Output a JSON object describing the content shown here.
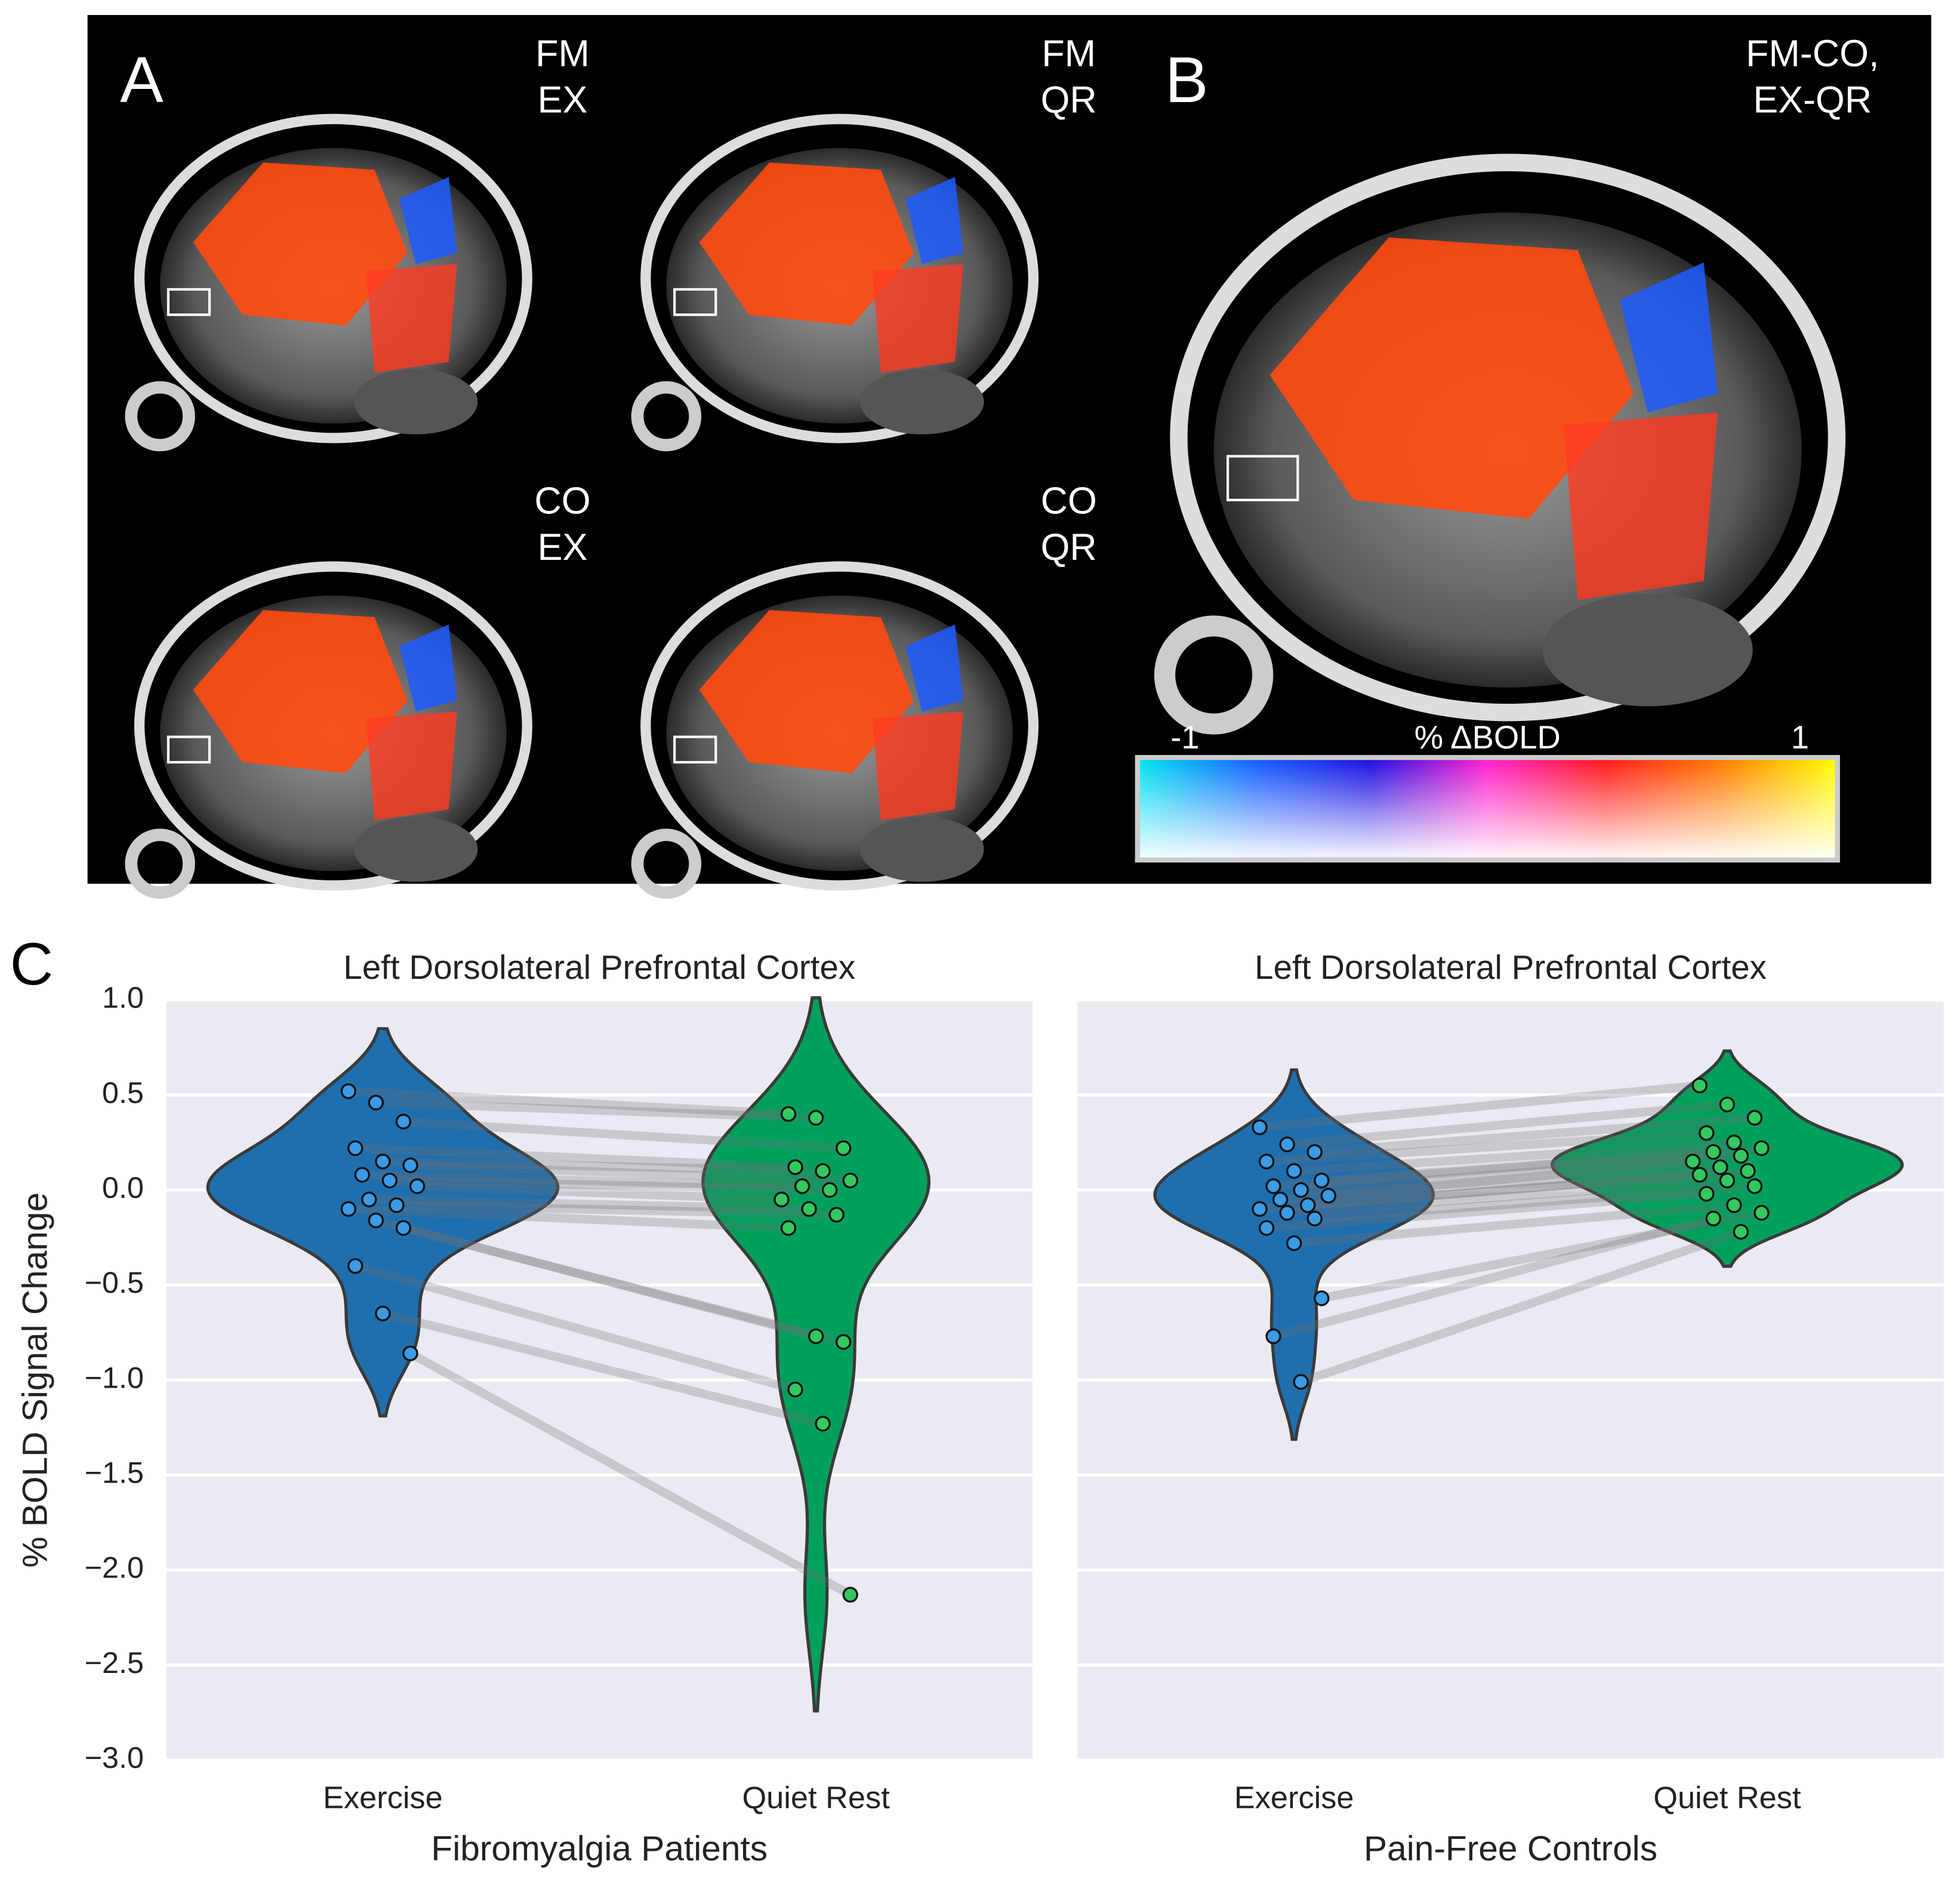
{
  "figure": {
    "panel_a": {
      "label": "A",
      "images": [
        [
          "FM",
          "EX"
        ],
        [
          "FM",
          "QR"
        ],
        [
          "CO",
          "EX"
        ],
        [
          "CO",
          "QR"
        ]
      ]
    },
    "panel_b": {
      "label": "B",
      "title": [
        "FM-CO,",
        "EX-QR"
      ],
      "colorbar": {
        "label": "% ΔBOLD",
        "min": -1,
        "max": 1,
        "colors": [
          "#00e5f0",
          "#1560ff",
          "#2010e0",
          "#ff20d0",
          "#ff1a1a",
          "#ff7a00",
          "#ffff00"
        ]
      }
    },
    "panel_c": {
      "label": "C"
    }
  },
  "chart_data": [
    {
      "type": "violin",
      "title": "Left Dorsolateral Prefrontal Cortex",
      "ylabel": "% BOLD Signal Change",
      "xlabel": "Fibromyalgia Patients",
      "categories": [
        "Exercise",
        "Quiet Rest"
      ],
      "colors": [
        "#1f6fae",
        "#00a05c"
      ],
      "point_colors": [
        "#3b9be6",
        "#33c95f"
      ],
      "values": [
        [
          0.52,
          0.46,
          0.36,
          0.22,
          0.15,
          0.13,
          0.08,
          0.05,
          0.02,
          -0.05,
          -0.08,
          -0.1,
          -0.16,
          -0.2,
          -0.4,
          -0.65,
          -0.86
        ],
        [
          0.4,
          0.38,
          0.22,
          0.12,
          0.1,
          0.05,
          0.02,
          0,
          -0.05,
          -0.1,
          -0.13,
          -0.2,
          -0.77,
          -0.8,
          -1.05,
          -1.23,
          -2.13
        ]
      ],
      "ylim": [
        -3,
        1
      ],
      "yticks": [
        {
          "value": -3,
          "label": "−3.0"
        },
        {
          "value": -2.5,
          "label": "−2.5"
        },
        {
          "value": -2,
          "label": "−2.0"
        },
        {
          "value": -1.5,
          "label": "−1.5"
        },
        {
          "value": -1,
          "label": "−1.0"
        },
        {
          "value": -0.5,
          "label": "−0.5"
        },
        {
          "value": 0,
          "label": "0.0"
        },
        0.5,
        {
          "value": 1,
          "label": "1.0"
        }
      ],
      "grid": true
    },
    {
      "type": "violin",
      "title": "Left Dorsolateral Prefrontal Cortex",
      "xlabel": "Pain-Free Controls",
      "categories": [
        "Exercise",
        "Quiet Rest"
      ],
      "colors": [
        "#1f6fae",
        "#00a05c"
      ],
      "point_colors": [
        "#3b9be6",
        "#33c95f"
      ],
      "values": [
        [
          0.33,
          0.24,
          0.2,
          0.15,
          0.1,
          0.05,
          0.02,
          0,
          -0.03,
          -0.05,
          -0.08,
          -0.1,
          -0.12,
          -0.15,
          -0.2,
          -0.28,
          -0.57,
          -0.77,
          -1.01
        ],
        [
          0.55,
          0.45,
          0.38,
          0.3,
          0.25,
          0.22,
          0.2,
          0.18,
          0.15,
          0.12,
          0.1,
          0.08,
          0.05,
          0.02,
          -0.02,
          -0.08,
          -0.12,
          -0.15,
          -0.22
        ]
      ],
      "ylim": [
        -3,
        1
      ],
      "yticks": [
        -3,
        -2.5,
        -2,
        -1.5,
        -1,
        -0.5,
        0,
        0.5,
        1
      ],
      "grid": true
    }
  ]
}
